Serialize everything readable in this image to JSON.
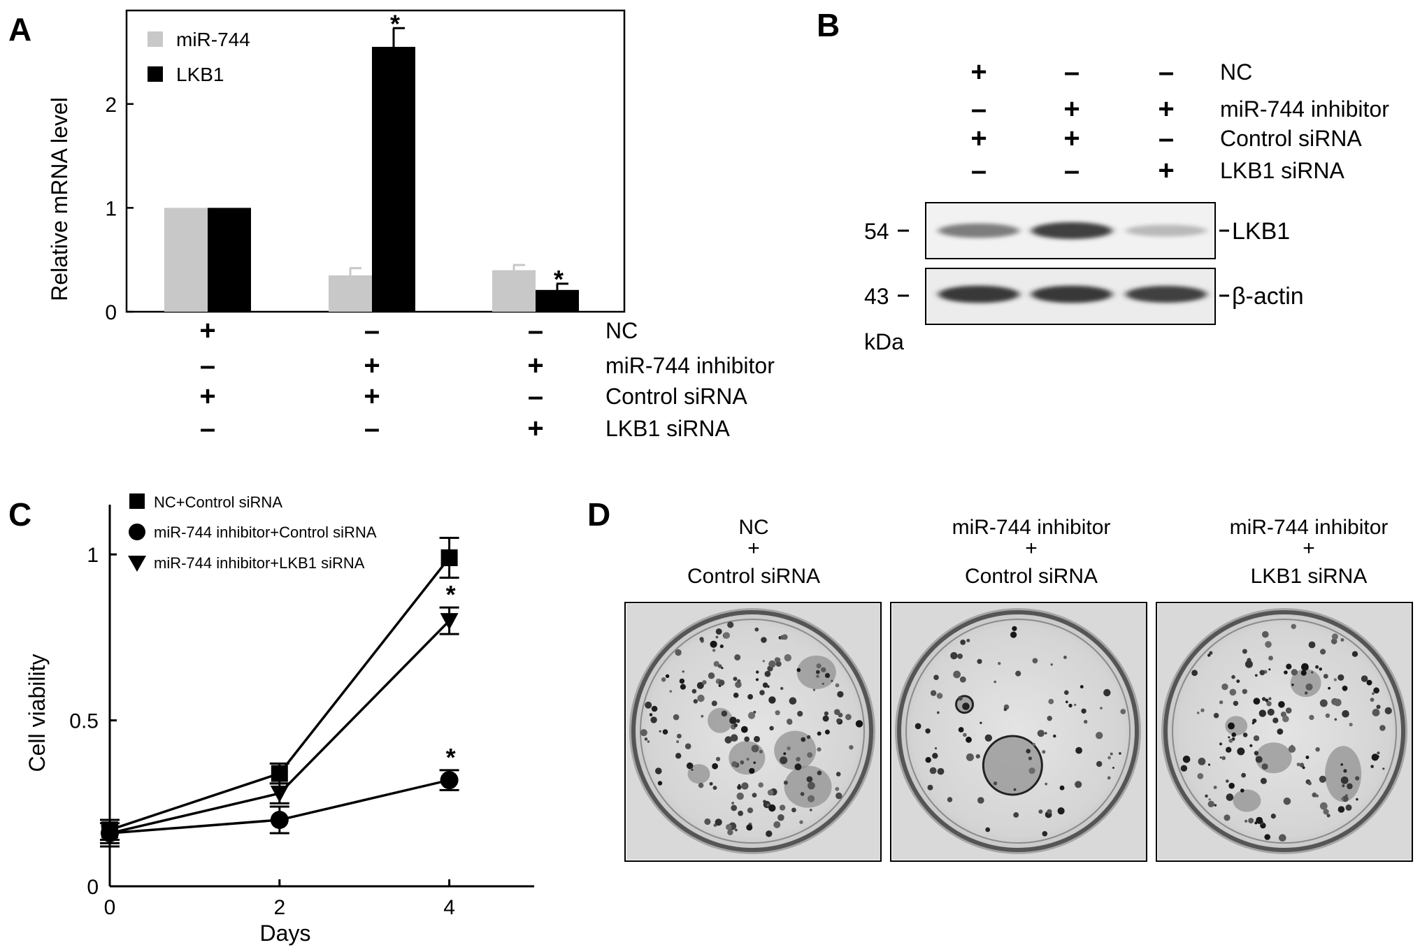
{
  "panels": {
    "A": {
      "letter": "A"
    },
    "B": {
      "letter": "B"
    },
    "C": {
      "letter": "C"
    },
    "D": {
      "letter": "D"
    }
  },
  "conditions": [
    {
      "label": "NC",
      "signs": [
        "+",
        "–",
        "–"
      ]
    },
    {
      "label": "miR-744 inhibitor",
      "signs": [
        "–",
        "+",
        "+"
      ]
    },
    {
      "label": "Control siRNA",
      "signs": [
        "+",
        "+",
        "–"
      ]
    },
    {
      "label": "LKB1 siRNA",
      "signs": [
        "–",
        "–",
        "+"
      ]
    }
  ],
  "blot": {
    "bands": [
      {
        "label": "LKB1",
        "marker": "54",
        "intensities": [
          0.55,
          0.85,
          0.25
        ]
      },
      {
        "label": "β-actin",
        "marker": "43",
        "intensities": [
          0.9,
          0.9,
          0.85
        ]
      }
    ],
    "unit": "kDa"
  },
  "colony": {
    "captions": [
      [
        "NC",
        "+",
        "Control siRNA"
      ],
      [
        "miR-744 inhibitor",
        "+",
        "Control siRNA"
      ],
      [
        "miR-744 inhibitor",
        "+",
        "LKB1 siRNA"
      ]
    ],
    "colony_density": [
      1.0,
      0.45,
      0.85
    ]
  },
  "colors": {
    "mir744_bar": "#c8c8c8",
    "lkb1_bar": "#000000"
  },
  "chart_data": [
    {
      "panel": "A",
      "type": "bar",
      "ylabel": "Relative mRNA level",
      "ylim": [
        0,
        2.9
      ],
      "yticks": [
        0,
        1,
        2
      ],
      "group_count": 3,
      "series": [
        {
          "name": "miR-744",
          "color": "#c8c8c8",
          "values": [
            1.0,
            0.35,
            0.4
          ],
          "errors": [
            0,
            0.07,
            0.05
          ],
          "stars": [
            false,
            false,
            false
          ]
        },
        {
          "name": "LKB1",
          "color": "#000000",
          "values": [
            1.0,
            2.55,
            0.21
          ],
          "errors": [
            0,
            0.18,
            0.06
          ],
          "stars": [
            false,
            true,
            true
          ]
        }
      ],
      "star_symbol": "*",
      "legend": "top-left"
    },
    {
      "panel": "C",
      "type": "line",
      "xlabel": "Days",
      "ylabel": "Cell viability",
      "x": [
        0,
        2,
        4
      ],
      "xlim": [
        0,
        5
      ],
      "ylim": [
        0,
        1.15
      ],
      "xticks": [
        0,
        2,
        4
      ],
      "yticks": [
        {
          "value": 0,
          "label": "0"
        },
        {
          "value": 0.5,
          "label": "0.5"
        },
        {
          "value": 1,
          "label": "1"
        }
      ],
      "series": [
        {
          "name": "NC+Control siRNA",
          "marker": "square",
          "values": [
            0.17,
            0.34,
            0.99
          ],
          "errors": [
            0.03,
            0.03,
            0.06
          ],
          "stars": [
            false,
            false,
            false
          ]
        },
        {
          "name": "miR-744 inhibitor+Control siRNA",
          "marker": "circle",
          "values": [
            0.16,
            0.2,
            0.32
          ],
          "errors": [
            0.04,
            0.04,
            0.03
          ],
          "stars": [
            false,
            false,
            true
          ]
        },
        {
          "name": "miR-744 inhibitor+LKB1 siRNA",
          "marker": "triangle-down",
          "values": [
            0.16,
            0.28,
            0.8
          ],
          "errors": [
            0.03,
            0.03,
            0.04
          ],
          "stars": [
            false,
            false,
            true
          ]
        }
      ],
      "star_symbol": "*",
      "legend": "top-left"
    }
  ]
}
